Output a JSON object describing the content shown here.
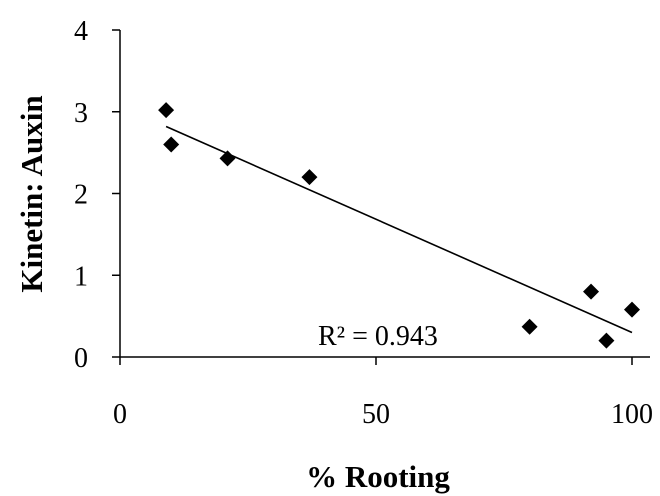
{
  "chart_data": {
    "type": "scatter",
    "title": "",
    "xlabel": "% Rooting",
    "ylabel": "Kinetin: Auxin",
    "xlim": [
      0,
      100
    ],
    "ylim": [
      0,
      4
    ],
    "x_ticks": [
      0,
      50,
      100
    ],
    "y_ticks": [
      0,
      1,
      2,
      3,
      4
    ],
    "x_tick_labels": [
      "0",
      "50",
      "100"
    ],
    "y_tick_labels": [
      "0",
      "1",
      "2",
      "3",
      "4"
    ],
    "grid": false,
    "legend": "none",
    "marker": "diamond",
    "marker_color": "#000000",
    "points": [
      {
        "x": 9,
        "y": 3.02
      },
      {
        "x": 10,
        "y": 2.6
      },
      {
        "x": 21,
        "y": 2.43
      },
      {
        "x": 37,
        "y": 2.2
      },
      {
        "x": 80,
        "y": 0.37
      },
      {
        "x": 92,
        "y": 0.8
      },
      {
        "x": 95,
        "y": 0.2
      },
      {
        "x": 100,
        "y": 0.58
      }
    ],
    "trendline": {
      "type": "linear",
      "from": {
        "x": 9,
        "y": 2.82
      },
      "to": {
        "x": 100,
        "y": 0.3
      }
    },
    "annotation": "R² = 0.943"
  }
}
